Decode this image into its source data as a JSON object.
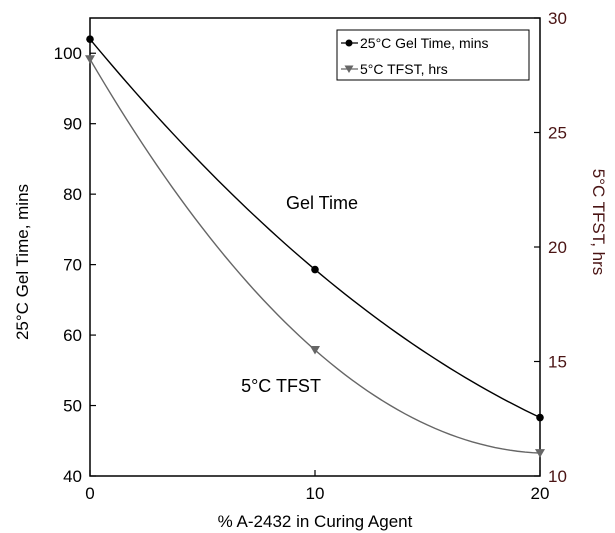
{
  "chart_data": {
    "type": "line",
    "x": [
      0,
      10,
      20
    ],
    "xlabel": "% A-2432 in Curing Agent",
    "xlim": [
      0,
      20
    ],
    "xticks": [
      "0",
      "10",
      "20"
    ],
    "ylabel_left": "25°C Gel Time, mins",
    "ylim_left": [
      40,
      105
    ],
    "yticks_left": [
      "40",
      "50",
      "60",
      "70",
      "80",
      "90",
      "100"
    ],
    "ylabel_right": "5°C TFST, hrs",
    "ylim_right": [
      10,
      30
    ],
    "yticks_right": [
      "10",
      "15",
      "20",
      "25",
      "30"
    ],
    "grid": false,
    "legend_position": "top-right",
    "series": [
      {
        "name": "25°C Gel Time, mins",
        "axis": "left",
        "values": [
          102,
          69.3,
          48.3
        ],
        "color": "#000000",
        "marker": "circle"
      },
      {
        "name": "5°C TFST, hrs",
        "axis": "right",
        "values": [
          28.2,
          15.5,
          11.0
        ],
        "color": "#666666",
        "marker": "triangle-down"
      }
    ],
    "annotations": [
      {
        "text": "Gel Time"
      },
      {
        "text": "5°C TFST"
      }
    ],
    "right_axis_color": "#4a1414"
  }
}
